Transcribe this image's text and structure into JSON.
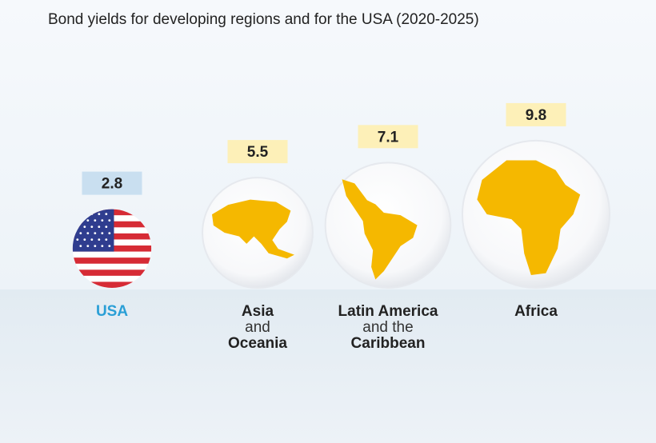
{
  "title": "Bond yields for developing regions and for the USA (2020-2025)",
  "chart_data": {
    "type": "bubble",
    "title": "Bond yields for developing regions and for the USA (2020-2025)",
    "categories": [
      "USA",
      "Asia and Oceania",
      "Latin America and the Caribbean",
      "Africa"
    ],
    "values": [
      2.8,
      5.5,
      7.1,
      9.8
    ],
    "items": [
      {
        "label_lines": [
          "USA"
        ],
        "value": 2.8,
        "value_label": "2.8",
        "icon": "us-flag",
        "label_color": "#2a9fd6",
        "box_color": "#c9dff0"
      },
      {
        "label_lines": [
          "Asia",
          "and",
          "Oceania"
        ],
        "value": 5.5,
        "value_label": "5.5",
        "icon": "asia-oceania-map",
        "label_color": "#222222",
        "box_color": "#fdf0b8"
      },
      {
        "label_lines": [
          "Latin America",
          "and the",
          "Caribbean"
        ],
        "value": 7.1,
        "value_label": "7.1",
        "icon": "latin-america-map",
        "label_color": "#222222",
        "box_color": "#fdf0b8"
      },
      {
        "label_lines": [
          "Africa"
        ],
        "value": 9.8,
        "value_label": "9.8",
        "icon": "africa-map",
        "label_color": "#222222",
        "box_color": "#fdf0b8"
      }
    ],
    "highlight_color": "#f5b800"
  }
}
